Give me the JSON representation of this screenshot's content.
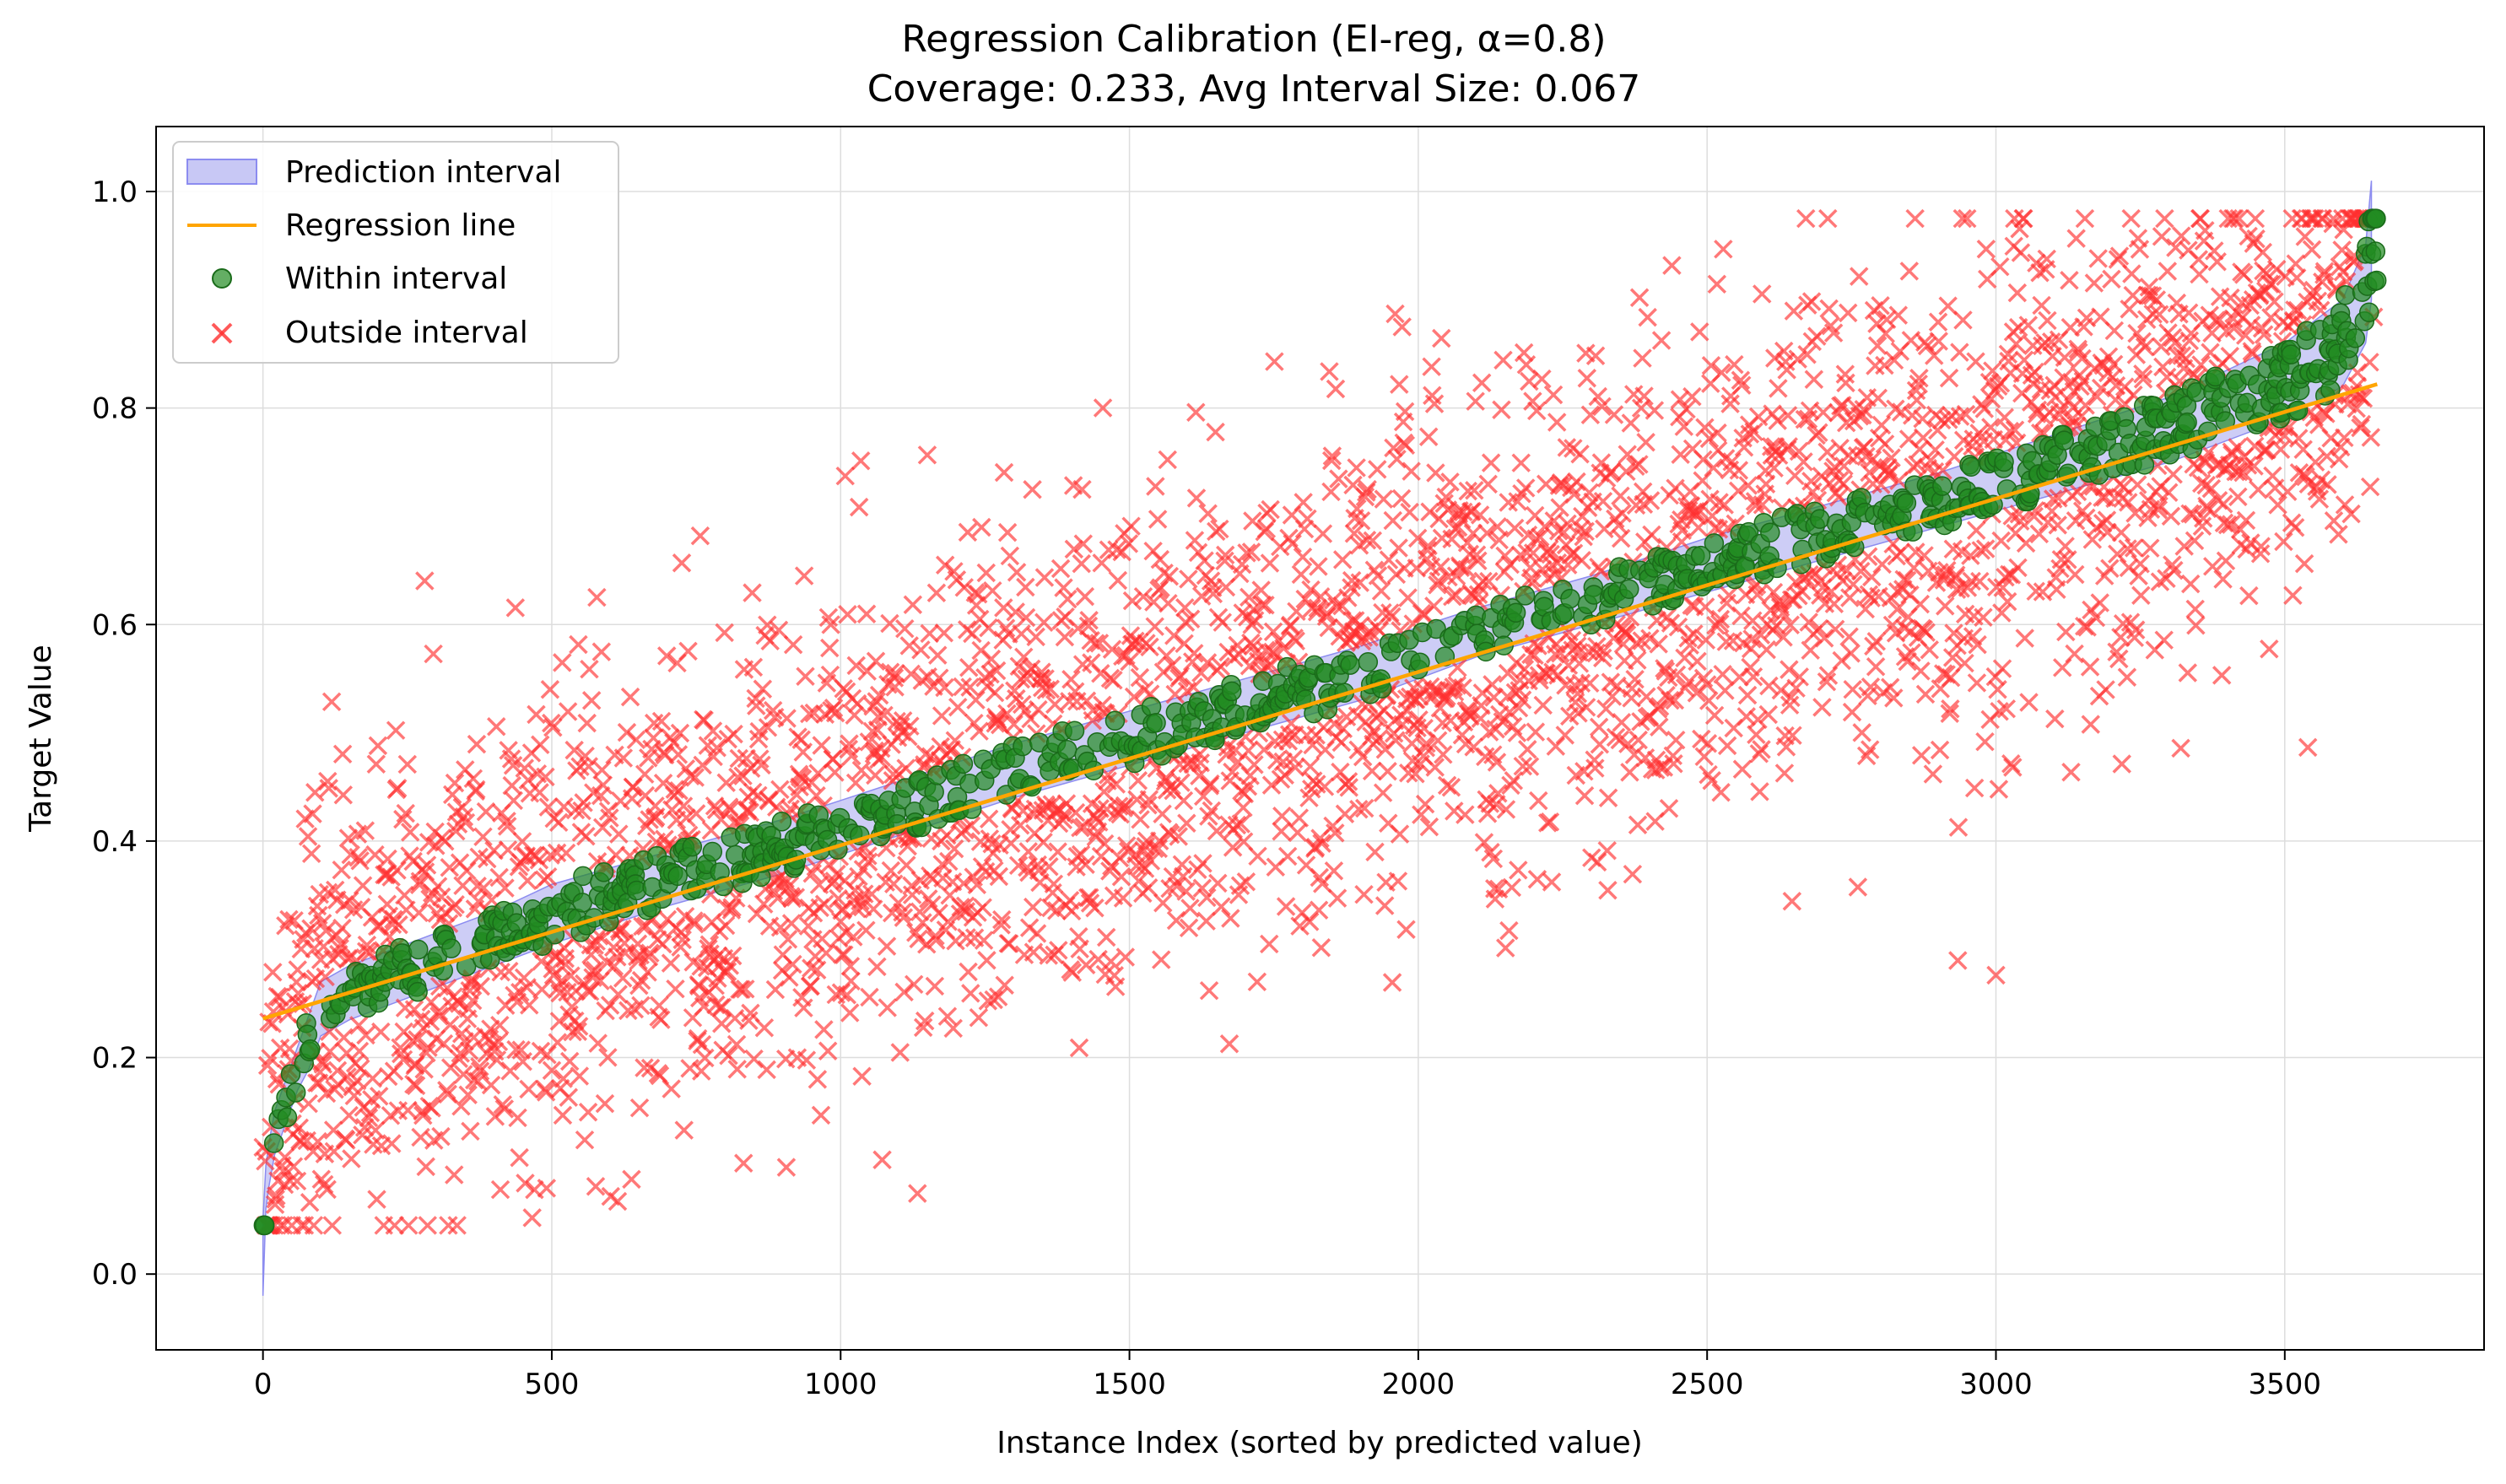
{
  "chart_data": {
    "type": "scatter",
    "title": "Regression Calibration (EI-reg, α=0.8)",
    "subtitle": "Coverage: 0.233, Avg Interval Size: 0.067",
    "xlabel": "Instance Index (sorted by predicted value)",
    "ylabel": "Target Value",
    "xlim": [
      -185,
      3845
    ],
    "ylim": [
      -0.07,
      1.06
    ],
    "xticks": [
      0,
      500,
      1000,
      1500,
      2000,
      2500,
      3000,
      3500
    ],
    "yticks": [
      0.0,
      0.2,
      0.4,
      0.6,
      0.8,
      1.0
    ],
    "xtick_labels": [
      "0",
      "500",
      "1000",
      "1500",
      "2000",
      "2500",
      "3000",
      "3500"
    ],
    "ytick_labels": [
      "0.0",
      "0.2",
      "0.4",
      "0.6",
      "0.8",
      "1.0"
    ],
    "grid": true,
    "legend_position": "top-left",
    "n_points": 3660,
    "coverage": 0.233,
    "avg_interval_size": 0.067,
    "colors": {
      "interval_fill": "#c8c8f5",
      "interval_edge": "#8c8cf0",
      "regression_line": "#ffa500",
      "within": "#228b22",
      "within_edge": "#1a6b1a",
      "outside": "#ff3030"
    },
    "series": [
      {
        "name": "Prediction interval",
        "kind": "band",
        "x": [
          0,
          5,
          10,
          20,
          40,
          60,
          80,
          100,
          150,
          200,
          300,
          400,
          500,
          700,
          900,
          1100,
          1300,
          1500,
          1700,
          1900,
          2100,
          2300,
          2500,
          2700,
          2900,
          3100,
          3300,
          3500,
          3600,
          3640,
          3650
        ],
        "lower": [
          -0.02,
          0.06,
          0.08,
          0.11,
          0.14,
          0.17,
          0.19,
          0.22,
          0.235,
          0.245,
          0.265,
          0.285,
          0.305,
          0.34,
          0.37,
          0.405,
          0.44,
          0.47,
          0.5,
          0.53,
          0.57,
          0.6,
          0.63,
          0.66,
          0.69,
          0.72,
          0.75,
          0.79,
          0.82,
          0.86,
          0.9
        ],
        "upper": [
          0.05,
          0.1,
          0.12,
          0.15,
          0.18,
          0.21,
          0.24,
          0.27,
          0.285,
          0.295,
          0.315,
          0.335,
          0.36,
          0.39,
          0.42,
          0.455,
          0.49,
          0.52,
          0.55,
          0.58,
          0.615,
          0.645,
          0.68,
          0.71,
          0.74,
          0.775,
          0.81,
          0.86,
          0.9,
          0.95,
          1.01
        ]
      },
      {
        "name": "Regression line",
        "kind": "line",
        "x": [
          0,
          3660
        ],
        "y": [
          0.236,
          0.822
        ]
      },
      {
        "name": "Within interval",
        "kind": "scatter",
        "marker": "circle",
        "count": 853
      },
      {
        "name": "Outside interval",
        "kind": "scatter",
        "marker": "x",
        "count": 2807
      }
    ]
  }
}
